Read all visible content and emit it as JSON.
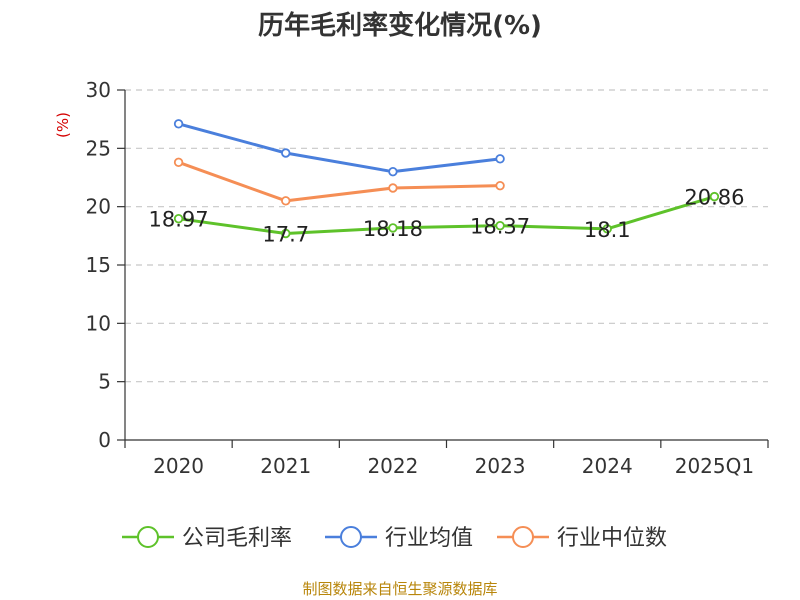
{
  "chart_data": {
    "type": "line",
    "title": "历年毛利率变化情况(%)",
    "ylabel": "(%)",
    "xlabel": "",
    "categories": [
      "2020",
      "2021",
      "2022",
      "2023",
      "2024",
      "2025Q1"
    ],
    "ylim": [
      0,
      30
    ],
    "yticks": [
      0,
      5,
      10,
      15,
      20,
      25,
      30
    ],
    "grid": true,
    "legend_position": "bottom",
    "series": [
      {
        "name": "公司毛利率",
        "color": "#5ec22a",
        "values": [
          18.97,
          17.7,
          18.18,
          18.37,
          18.1,
          20.86
        ],
        "labels": [
          "18.97",
          "17.7",
          "18.18",
          "18.37",
          "18.1",
          "20.86"
        ]
      },
      {
        "name": "行业均值",
        "color": "#4a7fdc",
        "values": [
          27.1,
          24.6,
          23.0,
          24.1,
          null,
          null
        ],
        "labels": []
      },
      {
        "name": "行业中位数",
        "color": "#f58e55",
        "values": [
          23.8,
          20.5,
          21.6,
          21.8,
          null,
          null
        ],
        "labels": []
      }
    ],
    "source": "制图数据来自恒生聚源数据库"
  }
}
